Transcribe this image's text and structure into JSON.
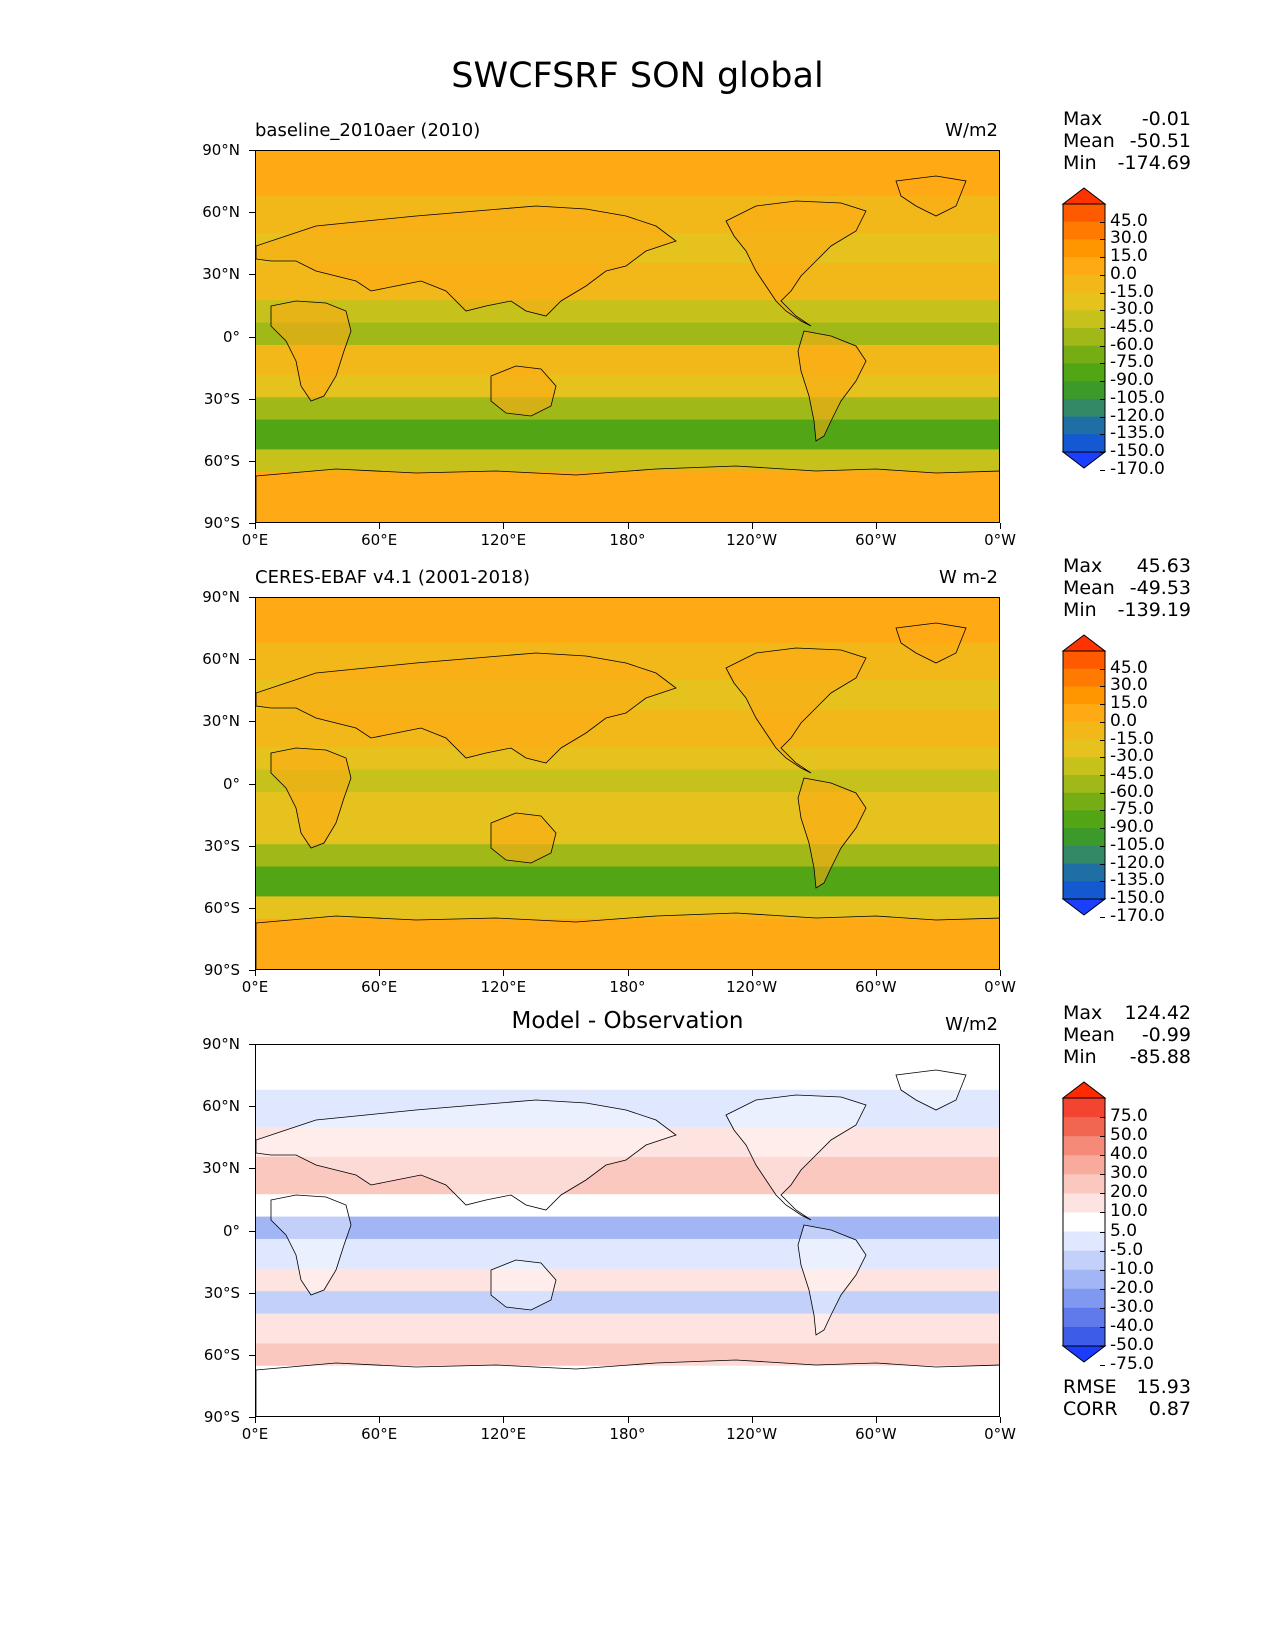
{
  "figure_title": "SWCFSRF SON global",
  "lat_labels": [
    "90°N",
    "60°N",
    "30°N",
    "0°",
    "30°S",
    "60°S",
    "90°S"
  ],
  "lon_labels": [
    "0°E",
    "60°E",
    "120°E",
    "180°",
    "120°W",
    "60°W",
    "0°W"
  ],
  "stat_labels": {
    "max": "Max",
    "mean": "Mean",
    "min": "Min",
    "rmse": "RMSE",
    "corr": "CORR"
  },
  "panels": [
    {
      "title": "baseline_2010aer (2010)",
      "title_style": "left",
      "units": "W/m2",
      "max": "-0.01",
      "mean": "-50.51",
      "min": "-174.69",
      "colorbar_levels": [
        "45.0",
        "30.0",
        "15.0",
        "0.0",
        "-15.0",
        "-30.0",
        "-45.0",
        "-60.0",
        "-75.0",
        "-90.0",
        "-105.0",
        "-120.0",
        "-135.0",
        "-150.0",
        "-170.0"
      ],
      "colorbar_colors": [
        "#ff3300",
        "#ff5a00",
        "#ff7a00",
        "#ff9600",
        "#ffaa14",
        "#f2b81a",
        "#e6c21e",
        "#c7c11c",
        "#a0b919",
        "#76ad14",
        "#52a514",
        "#3c9a2a",
        "#338866",
        "#1f6fa5",
        "#1458d2",
        "#1a3fff"
      ]
    },
    {
      "title": "CERES-EBAF v4.1 (2001-2018)",
      "title_style": "left",
      "units": "W m-2",
      "max": "45.63",
      "mean": "-49.53",
      "min": "-139.19",
      "colorbar_levels": [
        "45.0",
        "30.0",
        "15.0",
        "0.0",
        "-15.0",
        "-30.0",
        "-45.0",
        "-60.0",
        "-75.0",
        "-90.0",
        "-105.0",
        "-120.0",
        "-135.0",
        "-150.0",
        "-170.0"
      ],
      "colorbar_colors": [
        "#ff3300",
        "#ff5a00",
        "#ff7a00",
        "#ff9600",
        "#ffaa14",
        "#f2b81a",
        "#e6c21e",
        "#c7c11c",
        "#a0b919",
        "#76ad14",
        "#52a514",
        "#3c9a2a",
        "#338866",
        "#1f6fa5",
        "#1458d2",
        "#1a3fff"
      ]
    },
    {
      "title": "Model - Observation",
      "title_style": "center",
      "units": "W/m2",
      "max": "124.42",
      "mean": "-0.99",
      "min": "-85.88",
      "rmse": "15.93",
      "corr": "0.87",
      "colorbar_levels": [
        "75.0",
        "50.0",
        "40.0",
        "30.0",
        "20.0",
        "10.0",
        "5.0",
        "-5.0",
        "-10.0",
        "-20.0",
        "-30.0",
        "-40.0",
        "-50.0",
        "-75.0"
      ],
      "colorbar_colors": [
        "#ff2a00",
        "#f24430",
        "#f06650",
        "#f58a78",
        "#f8aa9c",
        "#fbc8c0",
        "#fde4e0",
        "#ffffff",
        "#e0e8ff",
        "#c2d0fa",
        "#a2b6f5",
        "#8098ef",
        "#5f7aeb",
        "#3d5ce8",
        "#1a3cff"
      ]
    }
  ]
}
